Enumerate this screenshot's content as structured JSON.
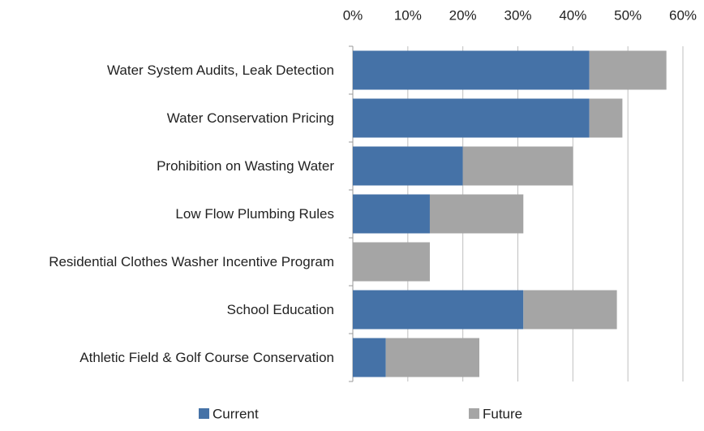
{
  "chart_data": {
    "type": "bar",
    "orientation": "horizontal",
    "stacked": true,
    "categories": [
      "Water System Audits, Leak Detection",
      "Water Conservation Pricing",
      "Prohibition on Wasting Water",
      "Low Flow Plumbing Rules",
      "Residential Clothes Washer Incentive Program",
      "School Education",
      "Athletic Field & Golf Course Conservation"
    ],
    "series": [
      {
        "name": "Current",
        "color": "#4572a7",
        "values": [
          43,
          43,
          20,
          14,
          0,
          31,
          6
        ]
      },
      {
        "name": "Future",
        "color": "#a5a5a5",
        "values": [
          14,
          6,
          20,
          17,
          14,
          17,
          17
        ]
      }
    ],
    "xlim": [
      0,
      60
    ],
    "xticks": [
      {
        "value": 0,
        "label": "0%"
      },
      {
        "value": 10,
        "label": "10%"
      },
      {
        "value": 20,
        "label": "20%"
      },
      {
        "value": 30,
        "label": "30%"
      },
      {
        "value": 40,
        "label": "40%"
      },
      {
        "value": 50,
        "label": "50%"
      },
      {
        "value": 60,
        "label": "60%"
      }
    ],
    "grid": true,
    "legend": "bottom"
  }
}
